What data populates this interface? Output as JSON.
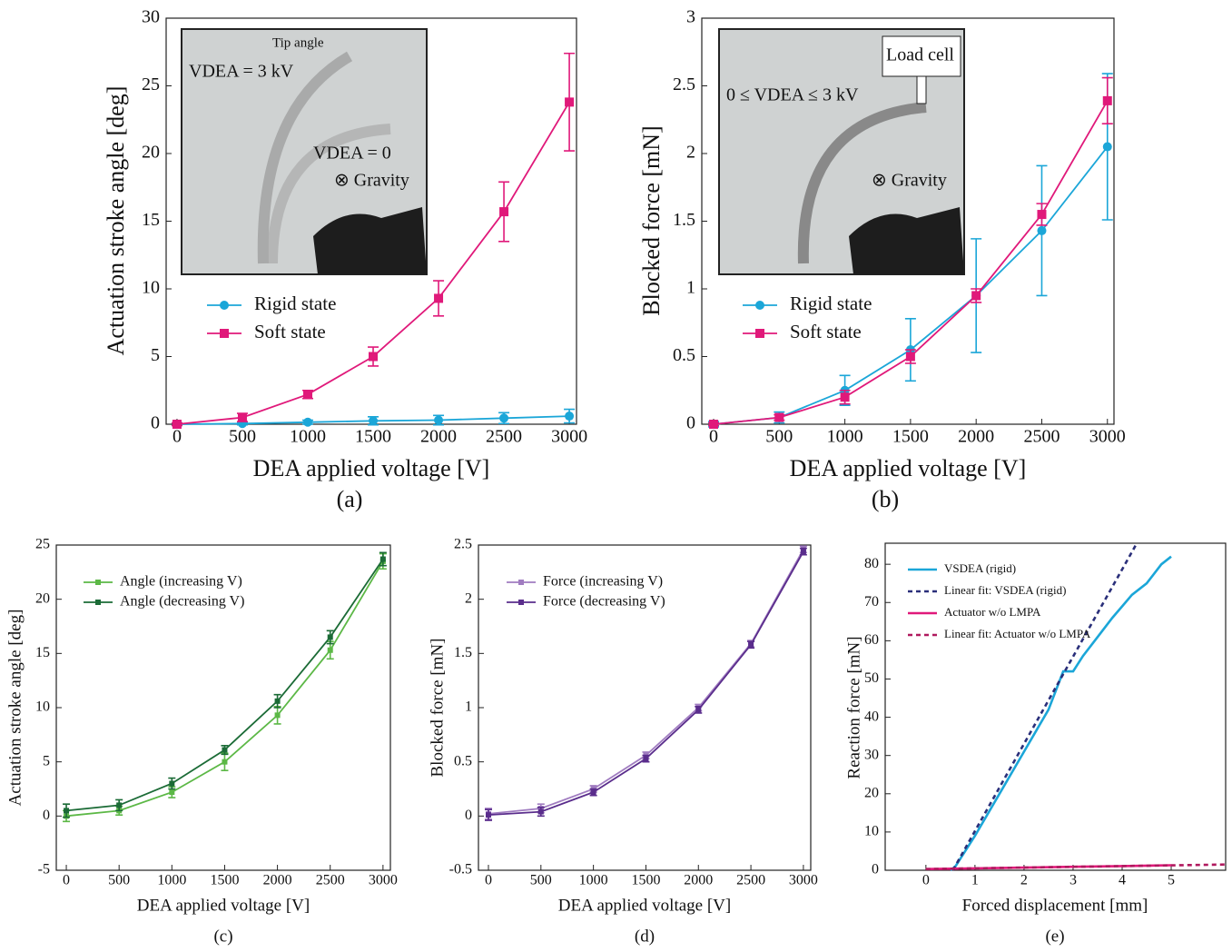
{
  "chart_data": [
    {
      "type": "line",
      "caption": "(a)",
      "x_label": "DEA applied voltage [V]",
      "y_label": "Actuation stroke angle [deg]",
      "x": [
        0,
        500,
        1000,
        1500,
        2000,
        2500,
        3000
      ],
      "xlim": [
        -83,
        3055
      ],
      "ylim": [
        0,
        30
      ],
      "xticks": [
        0,
        500,
        1000,
        1500,
        2000,
        2500,
        3000
      ],
      "yticks": [
        0,
        5,
        10,
        15,
        20,
        25,
        30
      ],
      "annotations": [
        "Tip angle",
        "VDEA = 3 kV",
        "VDEA = 0",
        "⊗ Gravity"
      ],
      "series": [
        {
          "name": "Rigid state",
          "color": "#1ba6d8",
          "marker": "circle",
          "values": [
            0,
            0.05,
            0.15,
            0.25,
            0.3,
            0.45,
            0.6
          ],
          "errors": [
            0.1,
            0.1,
            0.15,
            0.3,
            0.35,
            0.4,
            0.5
          ]
        },
        {
          "name": "Soft state",
          "color": "#e0197a",
          "marker": "square",
          "values": [
            0,
            0.5,
            2.2,
            5.0,
            9.3,
            15.7,
            23.8
          ],
          "errors": [
            0.1,
            0.3,
            0.3,
            0.7,
            1.3,
            2.2,
            3.6
          ]
        }
      ]
    },
    {
      "type": "line",
      "caption": "(b)",
      "x_label": "DEA applied voltage [V]",
      "y_label": "Blocked force [mN]",
      "x": [
        0,
        500,
        1000,
        1500,
        2000,
        2500,
        3000
      ],
      "xlim": [
        -90,
        3050
      ],
      "ylim": [
        0,
        3
      ],
      "xticks": [
        0,
        500,
        1000,
        1500,
        2000,
        2500,
        3000
      ],
      "yticks": [
        0,
        0.5,
        1,
        1.5,
        2,
        2.5,
        3
      ],
      "annotations": [
        "Load cell",
        "0 ≤ VDEA ≤ 3 kV",
        "⊗ Gravity"
      ],
      "series": [
        {
          "name": "Rigid state",
          "color": "#1ba6d8",
          "marker": "circle",
          "values": [
            0,
            0.05,
            0.25,
            0.55,
            0.95,
            1.43,
            2.05
          ],
          "errors": [
            0.02,
            0.04,
            0.11,
            0.23,
            0.42,
            0.48,
            0.54
          ]
        },
        {
          "name": "Soft state",
          "color": "#e0197a",
          "marker": "square",
          "values": [
            0,
            0.05,
            0.2,
            0.5,
            0.95,
            1.55,
            2.39
          ],
          "errors": [
            0.01,
            0.02,
            0.05,
            0.05,
            0.05,
            0.08,
            0.17
          ]
        }
      ]
    },
    {
      "type": "line",
      "caption": "(c)",
      "x_label": "DEA applied voltage [V]",
      "y_label": "Actuation stroke angle [deg]",
      "x": [
        0,
        500,
        1000,
        1500,
        2000,
        2500,
        3000
      ],
      "xlim": [
        -95,
        3070
      ],
      "ylim": [
        -5,
        25
      ],
      "xticks": [
        0,
        500,
        1000,
        1500,
        2000,
        2500,
        3000
      ],
      "yticks": [
        -5,
        0,
        5,
        10,
        15,
        20,
        25
      ],
      "series": [
        {
          "name": "Angle (increasing V)",
          "color": "#5cb846",
          "marker": "square",
          "values": [
            0,
            0.5,
            2.2,
            5,
            9.3,
            15.3,
            23.5
          ],
          "errors": [
            0.5,
            0.4,
            0.5,
            0.8,
            0.8,
            0.8,
            0.7
          ]
        },
        {
          "name": "Angle (decreasing V)",
          "color": "#1b6b36",
          "marker": "square",
          "values": [
            0.5,
            1,
            3,
            6.1,
            10.6,
            16.5,
            23.7
          ],
          "errors": [
            0.6,
            0.5,
            0.5,
            0.4,
            0.6,
            0.6,
            0.6
          ]
        }
      ]
    },
    {
      "type": "line",
      "caption": "(d)",
      "x_label": "DEA applied voltage [V]",
      "y_label": "Blocked force [mN]",
      "x": [
        0,
        500,
        1000,
        1500,
        2000,
        2500,
        3000
      ],
      "xlim": [
        -95,
        3070
      ],
      "ylim": [
        -0.5,
        2.5
      ],
      "xticks": [
        0,
        500,
        1000,
        1500,
        2000,
        2500,
        3000
      ],
      "yticks": [
        -0.5,
        0,
        0.5,
        1,
        1.5,
        2,
        2.5
      ],
      "series": [
        {
          "name": "Force (increasing V)",
          "color": "#a07cc0",
          "marker": "square",
          "values": [
            0.02,
            0.07,
            0.25,
            0.56,
            1.0,
            1.59,
            2.46
          ],
          "errors": [
            0.05,
            0.04,
            0.03,
            0.03,
            0.03,
            0.03,
            0.03
          ]
        },
        {
          "name": "Force (decreasing V)",
          "color": "#5a2d8c",
          "marker": "square",
          "values": [
            0.01,
            0.04,
            0.22,
            0.53,
            0.98,
            1.58,
            2.44
          ],
          "errors": [
            0.05,
            0.04,
            0.03,
            0.03,
            0.03,
            0.03,
            0.03
          ]
        }
      ]
    },
    {
      "type": "line",
      "caption": "(e)",
      "x_label": "Forced displacement [mm]",
      "y_label": "Reaction force [mN]",
      "xlim": [
        -0.83,
        6.11
      ],
      "ylim": [
        0,
        85.5
      ],
      "xticks": [
        0,
        1,
        2,
        3,
        4,
        5
      ],
      "yticks": [
        0,
        10,
        20,
        30,
        40,
        50,
        60,
        70,
        80
      ],
      "series": [
        {
          "name": "VSDEA (rigid)",
          "color": "#1ba6d8",
          "linestyle": "solid",
          "x": [
            0.5,
            0.6,
            1,
            1.5,
            2,
            2.5,
            2.8,
            3,
            3.2,
            3.5,
            3.8,
            4,
            4.2,
            4.5,
            4.8,
            5
          ],
          "values": [
            0,
            1,
            9,
            20,
            31,
            42,
            52,
            52,
            56,
            61,
            66,
            69,
            72,
            75,
            80,
            82
          ]
        },
        {
          "name": "Linear fit: VSDEA (rigid)",
          "color": "#2a2f7a",
          "linestyle": "dashed",
          "x": [
            0.55,
            4.3
          ],
          "values": [
            0,
            85.5
          ]
        },
        {
          "name": "Actuator w/o LMPA",
          "color": "#e0197a",
          "linestyle": "solid",
          "x": [
            0,
            1,
            2,
            3,
            4,
            5
          ],
          "values": [
            0.3,
            0.5,
            0.7,
            0.9,
            1.1,
            1.3
          ]
        },
        {
          "name": "Linear fit: Actuator w/o LMPA",
          "color": "#b0195e",
          "linestyle": "dashed",
          "x": [
            0,
            6.11
          ],
          "values": [
            0.3,
            1.5
          ]
        }
      ]
    }
  ]
}
